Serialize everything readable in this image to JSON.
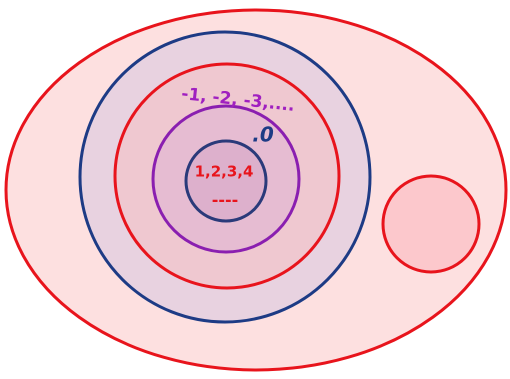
{
  "labels": {
    "negatives": "-1, -2, -3,....",
    "zero": ".0",
    "naturals": "1,2,3,4",
    "dashes": "----"
  }
}
